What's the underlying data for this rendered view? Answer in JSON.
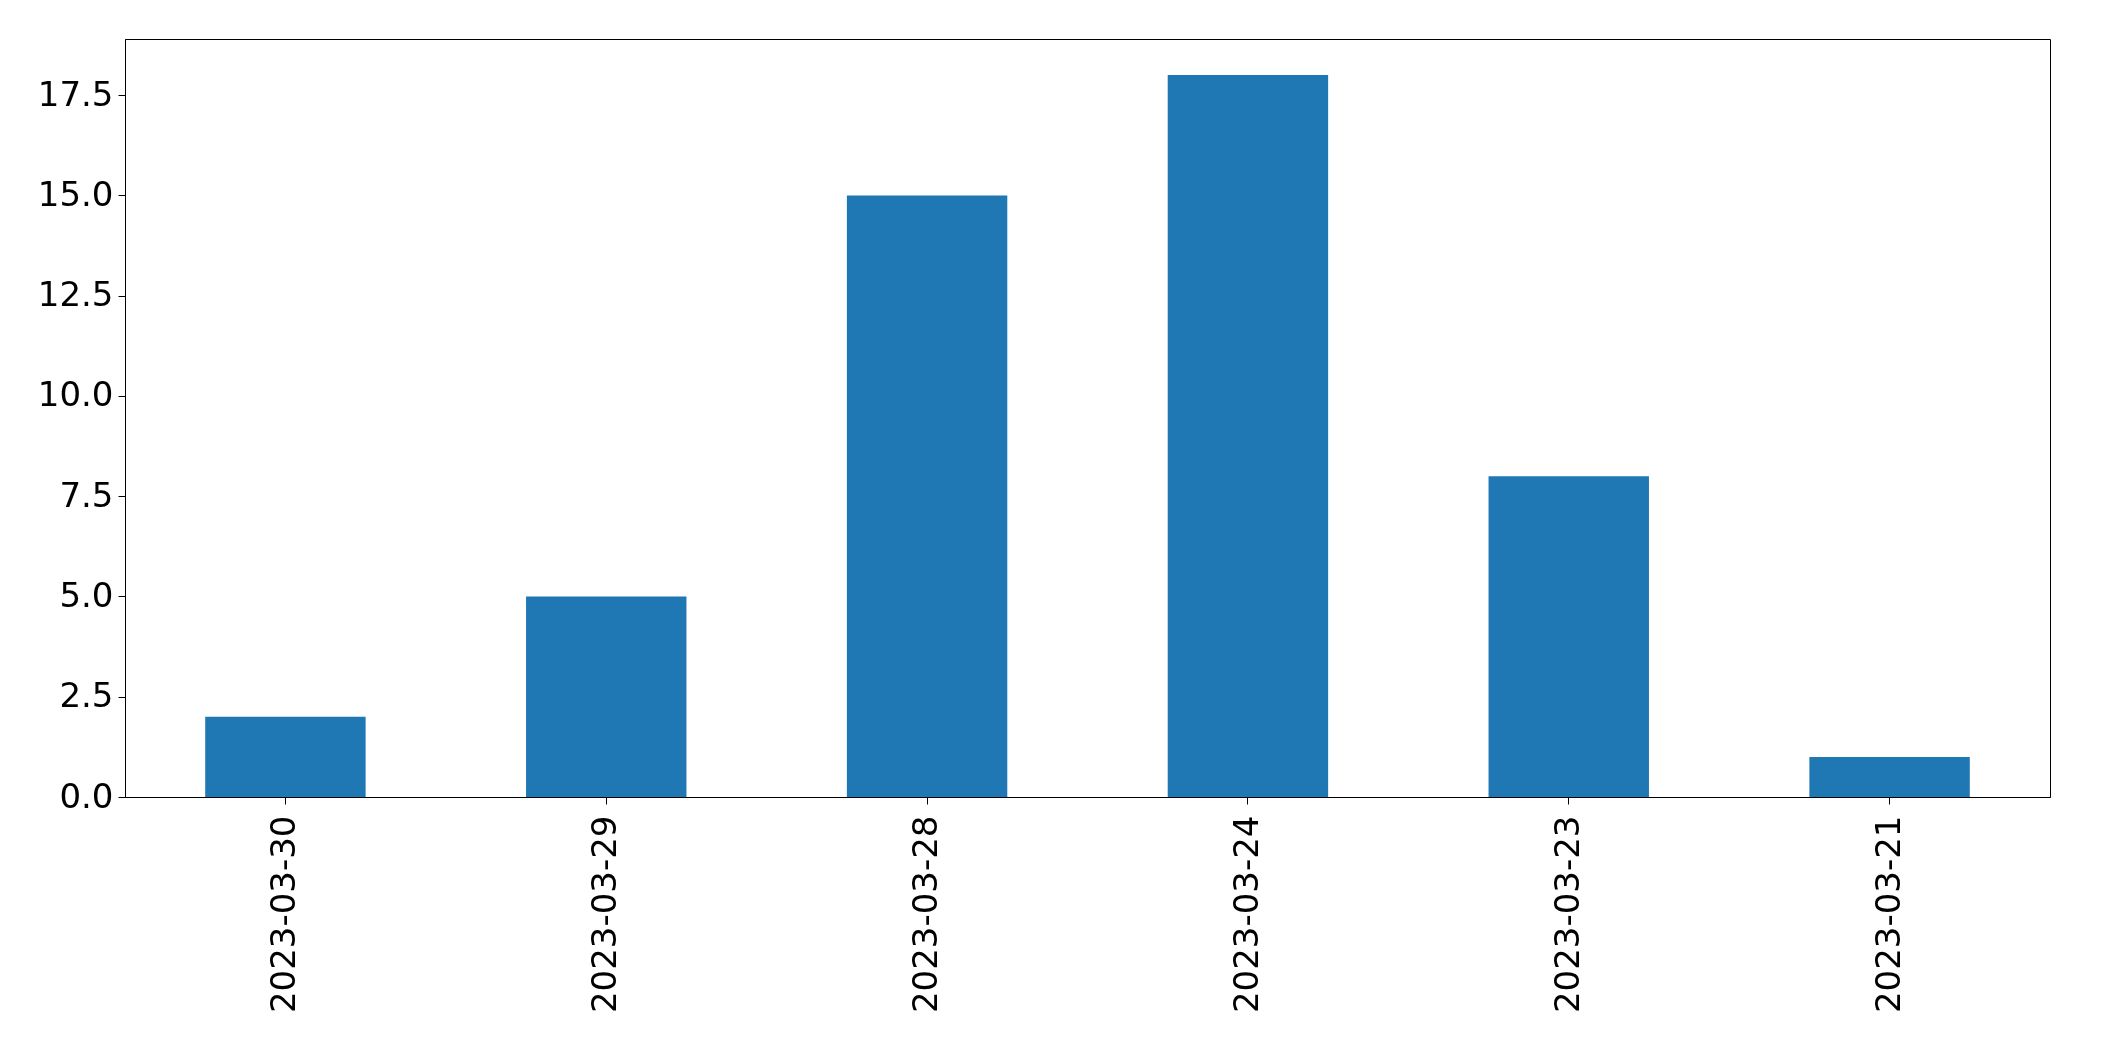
{
  "chart_data": {
    "type": "bar",
    "categories": [
      "2023-03-30",
      "2023-03-29",
      "2023-03-28",
      "2023-03-24",
      "2023-03-23",
      "2023-03-21"
    ],
    "values": [
      2,
      5,
      15,
      18,
      8,
      1
    ],
    "color": "#1f77b4",
    "ylim": [
      0,
      18.9
    ],
    "yticks": [
      {
        "value": 0,
        "label": "0.0"
      },
      2.5,
      {
        "value": 5,
        "label": "5.0"
      },
      7.5,
      {
        "value": 10,
        "label": "10.0"
      },
      12.5,
      {
        "value": 15,
        "label": "15.0"
      },
      17.5
    ]
  }
}
